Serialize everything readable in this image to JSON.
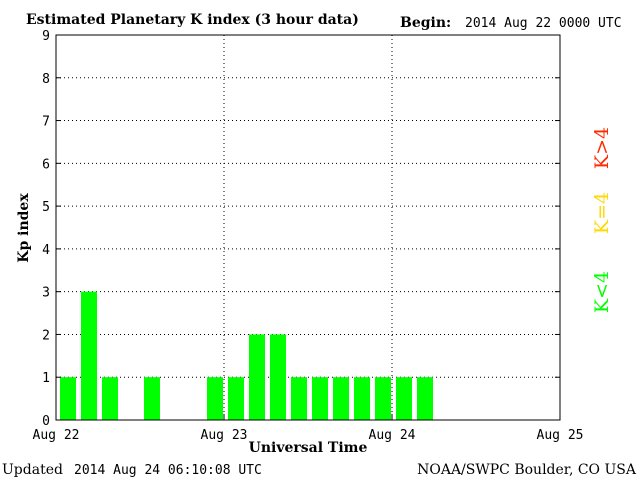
{
  "chart_data": {
    "type": "bar",
    "title": "Estimated Planetary K index (3 hour data)",
    "begin_label": "Begin:",
    "begin_value": "2014 Aug 22 0000 UTC",
    "xlabel": "Universal Time",
    "ylabel": "Kp index",
    "ylim": [
      0,
      9
    ],
    "yticks": [
      "0",
      "1",
      "2",
      "3",
      "4",
      "5",
      "6",
      "7",
      "8",
      "9"
    ],
    "x_day_labels": [
      "Aug 22",
      "Aug 23",
      "Aug 24",
      "Aug 25"
    ],
    "interval_hours": 3,
    "values": [
      1,
      3,
      1,
      null,
      1,
      null,
      null,
      1,
      1,
      2,
      2,
      1,
      1,
      1,
      1,
      1,
      1,
      1
    ],
    "grid": true,
    "legend": {
      "position": "right",
      "entries": [
        {
          "label": "K<4",
          "color": "#00ff00"
        },
        {
          "label": "K=4",
          "color": "#ffd800"
        },
        {
          "label": "K>4",
          "color": "#ff2a00"
        }
      ]
    },
    "bar_color": "#00ff00"
  },
  "footer": {
    "updated_label": "Updated",
    "updated_value": "2014 Aug 24 06:10:08 UTC",
    "credit": "NOAA/SWPC Boulder, CO USA"
  }
}
